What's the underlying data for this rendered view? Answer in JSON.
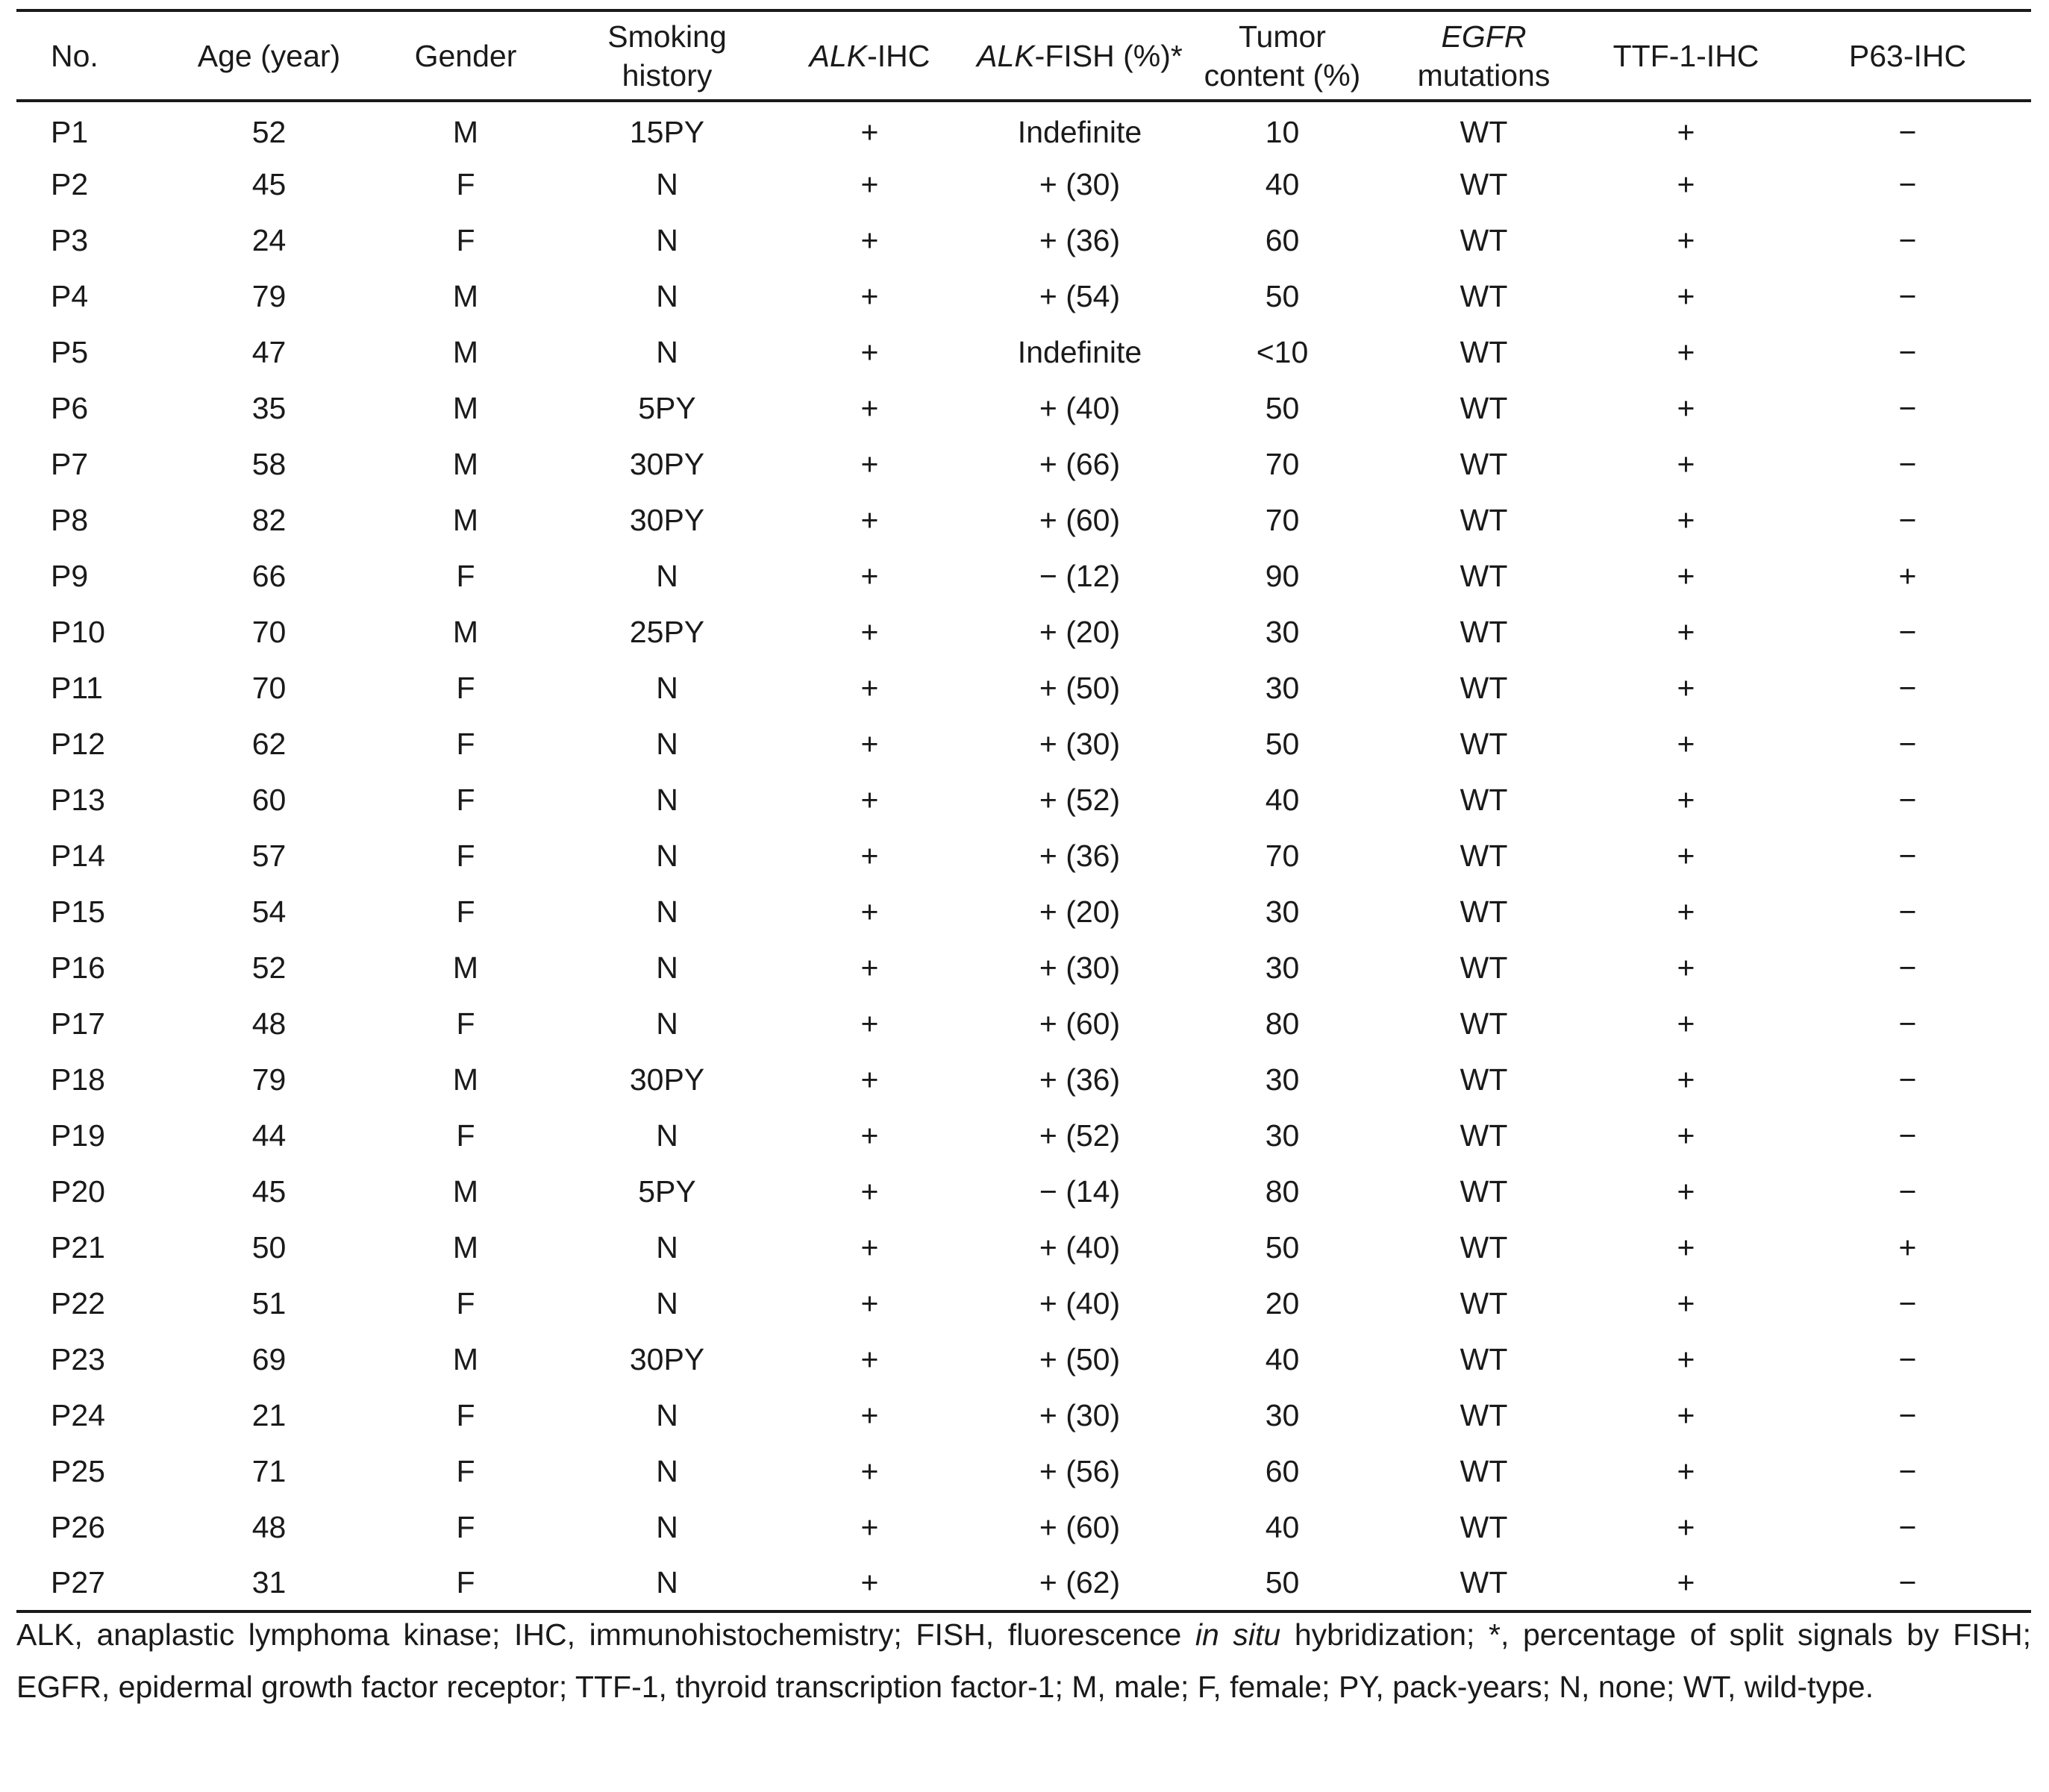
{
  "table": {
    "headers": [
      {
        "text": "No."
      },
      {
        "text": "Age (year)"
      },
      {
        "text": "Gender"
      },
      {
        "line1": "Smoking",
        "line2": "history"
      },
      {
        "it": "ALK",
        "rest": "-IHC"
      },
      {
        "it": "ALK",
        "rest": "-FISH (%)*"
      },
      {
        "line1": "Tumor",
        "line2": "content (%)"
      },
      {
        "it": "EGFR",
        "line2": "mutations"
      },
      {
        "text": "TTF-1-IHC"
      },
      {
        "text": "P63-IHC"
      }
    ],
    "rows": [
      [
        "P1",
        "52",
        "M",
        "15PY",
        "+",
        "Indefinite",
        "10",
        "WT",
        "+",
        "−"
      ],
      [
        "P2",
        "45",
        "F",
        "N",
        "+",
        "+ (30)",
        "40",
        "WT",
        "+",
        "−"
      ],
      [
        "P3",
        "24",
        "F",
        "N",
        "+",
        "+ (36)",
        "60",
        "WT",
        "+",
        "−"
      ],
      [
        "P4",
        "79",
        "M",
        "N",
        "+",
        "+ (54)",
        "50",
        "WT",
        "+",
        "−"
      ],
      [
        "P5",
        "47",
        "M",
        "N",
        "+",
        "Indefinite",
        "<10",
        "WT",
        "+",
        "−"
      ],
      [
        "P6",
        "35",
        "M",
        "5PY",
        "+",
        "+ (40)",
        "50",
        "WT",
        "+",
        "−"
      ],
      [
        "P7",
        "58",
        "M",
        "30PY",
        "+",
        "+ (66)",
        "70",
        "WT",
        "+",
        "−"
      ],
      [
        "P8",
        "82",
        "M",
        "30PY",
        "+",
        "+ (60)",
        "70",
        "WT",
        "+",
        "−"
      ],
      [
        "P9",
        "66",
        "F",
        "N",
        "+",
        "− (12)",
        "90",
        "WT",
        "+",
        "+"
      ],
      [
        "P10",
        "70",
        "M",
        "25PY",
        "+",
        "+ (20)",
        "30",
        "WT",
        "+",
        "−"
      ],
      [
        "P11",
        "70",
        "F",
        "N",
        "+",
        "+ (50)",
        "30",
        "WT",
        "+",
        "−"
      ],
      [
        "P12",
        "62",
        "F",
        "N",
        "+",
        "+ (30)",
        "50",
        "WT",
        "+",
        "−"
      ],
      [
        "P13",
        "60",
        "F",
        "N",
        "+",
        "+ (52)",
        "40",
        "WT",
        "+",
        "−"
      ],
      [
        "P14",
        "57",
        "F",
        "N",
        "+",
        "+ (36)",
        "70",
        "WT",
        "+",
        "−"
      ],
      [
        "P15",
        "54",
        "F",
        "N",
        "+",
        "+ (20)",
        "30",
        "WT",
        "+",
        "−"
      ],
      [
        "P16",
        "52",
        "M",
        "N",
        "+",
        "+ (30)",
        "30",
        "WT",
        "+",
        "−"
      ],
      [
        "P17",
        "48",
        "F",
        "N",
        "+",
        "+ (60)",
        "80",
        "WT",
        "+",
        "−"
      ],
      [
        "P18",
        "79",
        "M",
        "30PY",
        "+",
        "+ (36)",
        "30",
        "WT",
        "+",
        "−"
      ],
      [
        "P19",
        "44",
        "F",
        "N",
        "+",
        "+ (52)",
        "30",
        "WT",
        "+",
        "−"
      ],
      [
        "P20",
        "45",
        "M",
        "5PY",
        "+",
        "− (14)",
        "80",
        "WT",
        "+",
        "−"
      ],
      [
        "P21",
        "50",
        "M",
        "N",
        "+",
        "+ (40)",
        "50",
        "WT",
        "+",
        "+"
      ],
      [
        "P22",
        "51",
        "F",
        "N",
        "+",
        "+ (40)",
        "20",
        "WT",
        "+",
        "−"
      ],
      [
        "P23",
        "69",
        "M",
        "30PY",
        "+",
        "+ (50)",
        "40",
        "WT",
        "+",
        "−"
      ],
      [
        "P24",
        "21",
        "F",
        "N",
        "+",
        "+ (30)",
        "30",
        "WT",
        "+",
        "−"
      ],
      [
        "P25",
        "71",
        "F",
        "N",
        "+",
        "+ (56)",
        "60",
        "WT",
        "+",
        "−"
      ],
      [
        "P26",
        "48",
        "F",
        "N",
        "+",
        "+ (60)",
        "40",
        "WT",
        "+",
        "−"
      ],
      [
        "P27",
        "31",
        "F",
        "N",
        "+",
        "+ (62)",
        "50",
        "WT",
        "+",
        "−"
      ]
    ]
  },
  "footnote": {
    "before_italic": "ALK, anaplastic lymphoma kinase; IHC, immunohistochemistry; FISH, fluorescence ",
    "italic": "in situ",
    "after_italic": " hybridization; *, percentage of split signals by FISH; EGFR, epidermal growth factor receptor; TTF-1, thyroid transcription factor-1; M, male; F, female; PY, pack-years; N, none; WT, wild-type."
  }
}
